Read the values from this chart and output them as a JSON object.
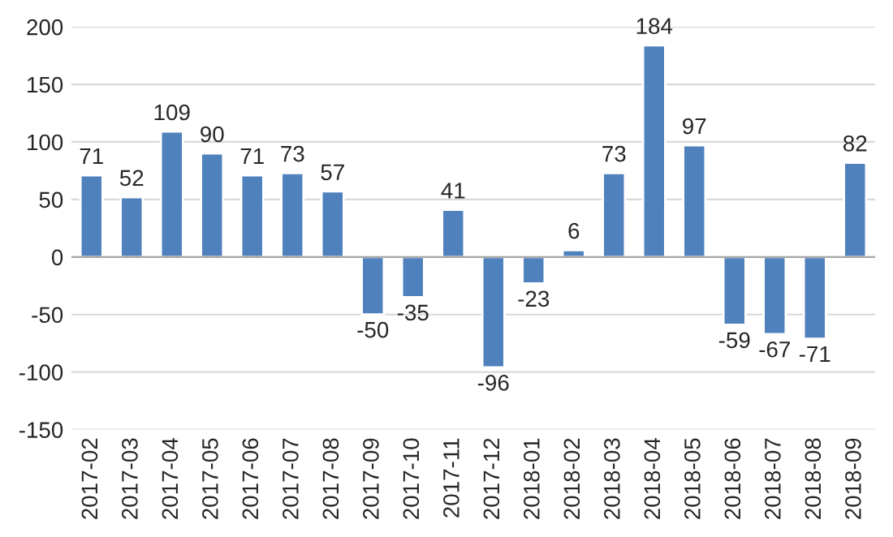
{
  "chart_data": {
    "type": "bar",
    "categories": [
      "2017-02",
      "2017-03",
      "2017-04",
      "2017-05",
      "2017-06",
      "2017-07",
      "2017-08",
      "2017-09",
      "2017-10",
      "2017-11",
      "2017-12",
      "2018-01",
      "2018-02",
      "2018-03",
      "2018-04",
      "2018-05",
      "2018-06",
      "2018-07",
      "2018-08",
      "2018-09"
    ],
    "values": [
      71,
      52,
      109,
      90,
      71,
      73,
      57,
      -50,
      -35,
      41,
      -96,
      -23,
      6,
      73,
      184,
      97,
      -59,
      -67,
      -71,
      82
    ],
    "color": "#4f81bd",
    "ylim": [
      -150,
      200
    ],
    "yticks": [
      -150,
      -100,
      -50,
      0,
      50,
      100,
      150,
      200
    ],
    "grid": "y",
    "data_labels": true
  }
}
